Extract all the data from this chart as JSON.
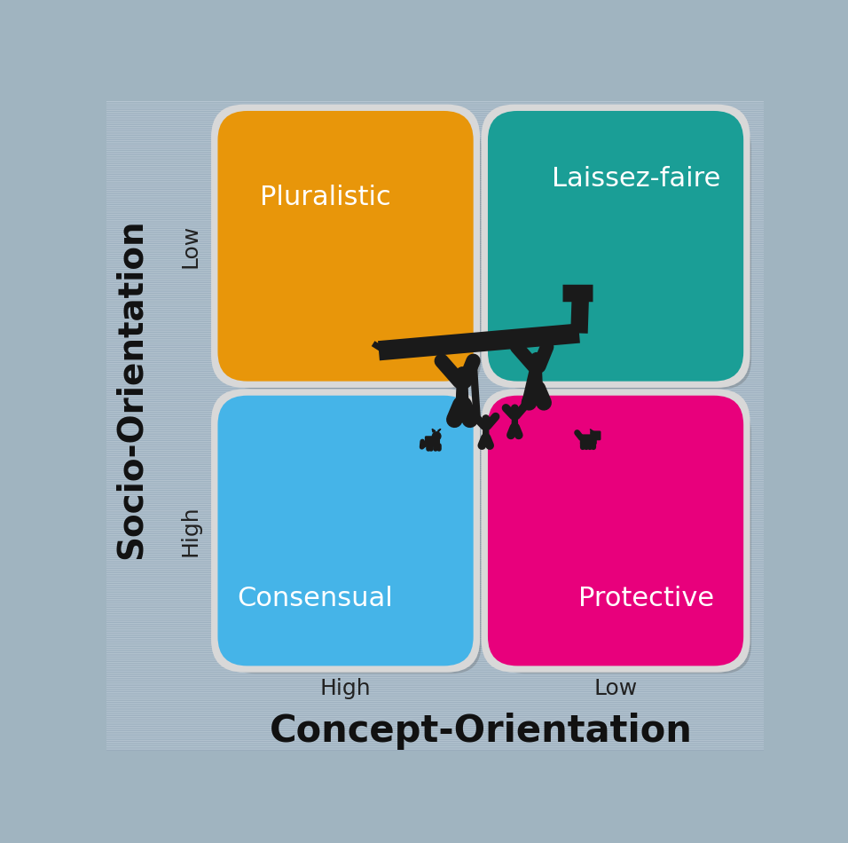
{
  "bg_color": "#9eb0be",
  "quadrant_colors": {
    "top_left": "#E8960A",
    "top_right": "#1A9E96",
    "bottom_left": "#45B4E8",
    "bottom_right": "#E8007C"
  },
  "quadrant_labels": {
    "top_left": "Pluralistic",
    "top_right": "Laissez-faire",
    "bottom_left": "Consensual",
    "bottom_right": "Protective"
  },
  "x_axis_label": "Concept-Orientation",
  "y_axis_label": "Socio-Orientation",
  "x_high_label": "High",
  "x_low_label": "Low",
  "y_high_label": "High",
  "y_low_label": "Low",
  "label_color": "#ffffff",
  "axis_label_color": "#111111",
  "axis_tick_color": "#222222",
  "figure_color": "#1a1a1a",
  "white_border": "#e0e0e0",
  "label_fontsize": 22,
  "tick_fontsize": 18,
  "axis_fontsize": 30
}
